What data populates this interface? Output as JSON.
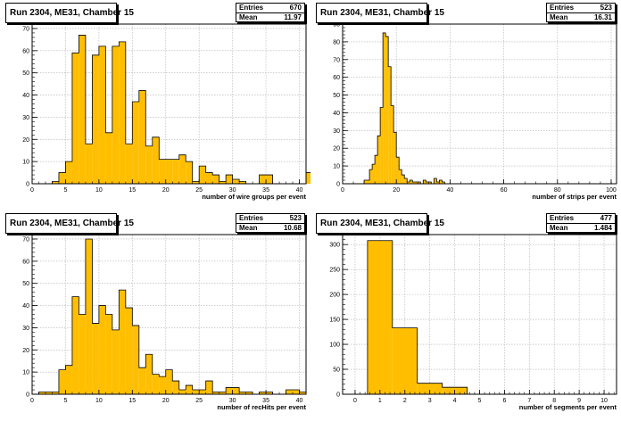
{
  "chart_data": [
    {
      "type": "bar",
      "title": "Run 2304, ME31, Chamber 15",
      "stats": {
        "entries_label": "Entries",
        "entries": "670",
        "mean_label": "Mean",
        "mean": "11.97"
      },
      "xlabel": "number of wire groups per event",
      "xlim": [
        0,
        41
      ],
      "ylim": [
        0,
        72
      ],
      "xticks": [
        0,
        5,
        10,
        15,
        20,
        25,
        30,
        35,
        40
      ],
      "yticks": [
        0,
        10,
        20,
        30,
        40,
        50,
        60,
        70
      ],
      "bin_edges_start": 0,
      "bin_width": 1,
      "values": [
        0,
        0,
        0,
        1,
        5,
        10,
        59,
        67,
        18,
        58,
        62,
        23,
        62,
        64,
        18,
        37,
        42,
        17,
        21,
        11,
        11,
        11,
        13,
        10,
        1,
        8,
        5,
        4,
        1,
        4,
        2,
        1,
        0,
        0,
        4,
        4,
        0,
        0,
        0,
        0,
        0,
        5
      ],
      "fill_color": "#ffbf00",
      "grid": true
    },
    {
      "type": "bar",
      "title": "Run 2304, ME31, Chamber 15",
      "stats": {
        "entries_label": "Entries",
        "entries": "523",
        "mean_label": "Mean",
        "mean": "16.31"
      },
      "xlabel": "number of strips per event",
      "xlim": [
        0,
        102
      ],
      "ylim": [
        0,
        90
      ],
      "xticks": [
        0,
        20,
        40,
        60,
        80,
        100
      ],
      "yticks": [
        0,
        10,
        20,
        30,
        40,
        50,
        60,
        70,
        80,
        90
      ],
      "bin_edges_start": 0,
      "bin_width": 1,
      "values": [
        0,
        0,
        0,
        0,
        0,
        0,
        0,
        0,
        2,
        2,
        8,
        11,
        16,
        27,
        43,
        85,
        83,
        66,
        44,
        29,
        15,
        8,
        5,
        3,
        1,
        2,
        1,
        1,
        1,
        0,
        2,
        1,
        1,
        0,
        3,
        1,
        2,
        1,
        0
      ],
      "fill_color": "#ffbf00",
      "grid": true
    },
    {
      "type": "bar",
      "title": "Run 2304, ME31, Chamber 15",
      "stats": {
        "entries_label": "Entries",
        "entries": "523",
        "mean_label": "Mean",
        "mean": "10.68"
      },
      "xlabel": "number of recHits per event",
      "xlim": [
        0,
        41
      ],
      "ylim": [
        0,
        72
      ],
      "xticks": [
        0,
        5,
        10,
        15,
        20,
        25,
        30,
        35,
        40
      ],
      "yticks": [
        0,
        10,
        20,
        30,
        40,
        50,
        60,
        70
      ],
      "bin_edges_start": 0,
      "bin_width": 1,
      "values": [
        0,
        1,
        1,
        1,
        11,
        13,
        44,
        36,
        70,
        32,
        40,
        36,
        29,
        47,
        39,
        31,
        12,
        18,
        9,
        8,
        11,
        6,
        2,
        4,
        2,
        2,
        6,
        1,
        1,
        3,
        3,
        1,
        1,
        0,
        1,
        1,
        0,
        0,
        2,
        2,
        1
      ],
      "fill_color": "#ffbf00",
      "grid": true
    },
    {
      "type": "bar",
      "title": "Run 2304, ME31, Chamber 15",
      "stats": {
        "entries_label": "Entries",
        "entries": "477",
        "mean_label": "Mean",
        "mean": "1.484"
      },
      "xlabel": "number of segments per event",
      "xlim": [
        -0.5,
        10.5
      ],
      "ylim": [
        0,
        320
      ],
      "xticks": [
        0,
        1,
        2,
        3,
        4,
        5,
        6,
        7,
        8,
        9,
        10
      ],
      "yticks": [
        0,
        50,
        100,
        150,
        200,
        250,
        300
      ],
      "bin_edges_start": 0.5,
      "bin_width": 1,
      "values": [
        308,
        133,
        22,
        14
      ],
      "fill_color": "#ffbf00",
      "grid": true
    }
  ]
}
